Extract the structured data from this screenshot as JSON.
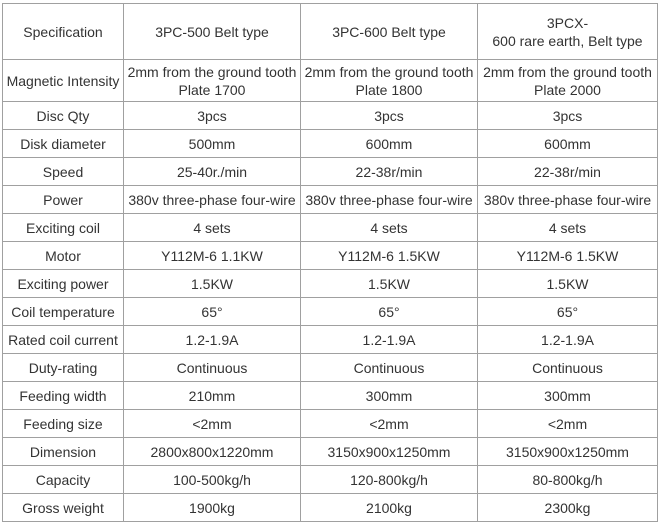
{
  "table": {
    "header": [
      "Specification",
      "3PC-500 Belt type",
      "3PC-600 Belt type",
      "3PCX-\n600 rare earth, Belt type"
    ],
    "rows": [
      [
        "Magnetic Intensity",
        "2mm from the ground tooth\nPlate 1700",
        "2mm from the ground tooth\nPlate 1800",
        "2mm from the ground tooth\nPlate 2000"
      ],
      [
        "Disc Qty",
        "3pcs",
        "3pcs",
        "3pcs"
      ],
      [
        "Disk diameter",
        "500mm",
        "600mm",
        "600mm"
      ],
      [
        "Speed",
        "25-40r./min",
        "22-38r/min",
        "22-38r/min"
      ],
      [
        "Power",
        "380v three-phase four-wire",
        "380v three-phase four-wire",
        "380v three-phase four-wire"
      ],
      [
        "Exciting coil",
        "4 sets",
        "4 sets",
        "4 sets"
      ],
      [
        "Motor",
        "Y112M-6  1.1KW",
        "Y112M-6 1.5KW",
        "Y112M-6  1.5KW"
      ],
      [
        "Exciting power",
        "1.5KW",
        "1.5KW",
        "1.5KW"
      ],
      [
        "Coil temperature",
        "65°",
        "65°",
        "65°"
      ],
      [
        "Rated coil current",
        "1.2-1.9A",
        "1.2-1.9A",
        "1.2-1.9A"
      ],
      [
        "Duty-rating",
        "Continuous",
        "Continuous",
        "Continuous"
      ],
      [
        "Feeding width",
        "210mm",
        "300mm",
        "300mm"
      ],
      [
        "Feeding size",
        "<2mm",
        "<2mm",
        "<2mm"
      ],
      [
        "Dimension",
        "2800x800x1220mm",
        "3150x900x1250mm",
        "3150x900x1250mm"
      ],
      [
        "Capacity",
        "100-500kg/h",
        "120-800kg/h",
        "80-800kg/h"
      ],
      [
        "Gross weight",
        "1900kg",
        "2100kg",
        "2300kg"
      ]
    ]
  }
}
